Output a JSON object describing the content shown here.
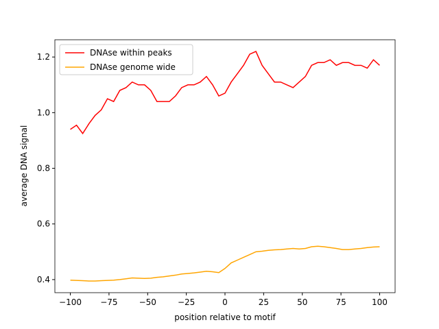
{
  "chart_data": {
    "type": "line",
    "xlabel": "position relative to motif",
    "ylabel": "average DNA signal",
    "x": [
      -100,
      -96,
      -92,
      -88,
      -84,
      -80,
      -76,
      -72,
      -68,
      -64,
      -60,
      -56,
      -52,
      -48,
      -44,
      -40,
      -36,
      -32,
      -28,
      -24,
      -20,
      -16,
      -12,
      -8,
      -4,
      0,
      4,
      8,
      12,
      16,
      20,
      24,
      28,
      32,
      36,
      40,
      44,
      48,
      52,
      56,
      60,
      64,
      68,
      72,
      76,
      80,
      84,
      88,
      92,
      96,
      100
    ],
    "series": [
      {
        "name": "DNAse within peaks",
        "color": "#ff0000",
        "values": [
          0.94,
          0.955,
          0.925,
          0.96,
          0.99,
          1.01,
          1.05,
          1.04,
          1.08,
          1.09,
          1.11,
          1.1,
          1.1,
          1.08,
          1.04,
          1.04,
          1.04,
          1.06,
          1.09,
          1.1,
          1.1,
          1.11,
          1.13,
          1.1,
          1.06,
          1.07,
          1.11,
          1.14,
          1.17,
          1.21,
          1.22,
          1.17,
          1.14,
          1.11,
          1.11,
          1.1,
          1.09,
          1.11,
          1.13,
          1.17,
          1.18,
          1.18,
          1.19,
          1.17,
          1.18,
          1.18,
          1.17,
          1.17,
          1.16,
          1.19,
          1.17
        ]
      },
      {
        "name": "DNAse genome wide",
        "color": "#ffa500",
        "values": [
          0.398,
          0.397,
          0.396,
          0.395,
          0.395,
          0.396,
          0.397,
          0.398,
          0.4,
          0.403,
          0.406,
          0.405,
          0.404,
          0.405,
          0.408,
          0.41,
          0.413,
          0.416,
          0.42,
          0.422,
          0.424,
          0.427,
          0.43,
          0.428,
          0.425,
          0.44,
          0.46,
          0.47,
          0.48,
          0.49,
          0.5,
          0.502,
          0.505,
          0.507,
          0.508,
          0.51,
          0.512,
          0.51,
          0.512,
          0.518,
          0.52,
          0.518,
          0.515,
          0.512,
          0.508,
          0.508,
          0.51,
          0.512,
          0.515,
          0.517,
          0.518
        ]
      }
    ],
    "xlim": [
      -110,
      110
    ],
    "ylim": [
      0.353,
      1.262
    ],
    "xticks": [
      {
        "value": -100,
        "label": "−100"
      },
      {
        "value": -75,
        "label": "−75"
      },
      {
        "value": -50,
        "label": "−50"
      },
      {
        "value": -25,
        "label": "−25"
      },
      0,
      25,
      50,
      75,
      100
    ],
    "yticks": [
      0.4,
      0.6,
      0.8,
      {
        "value": 1.0,
        "label": "1.0"
      },
      1.2
    ],
    "legend": "upper left"
  }
}
